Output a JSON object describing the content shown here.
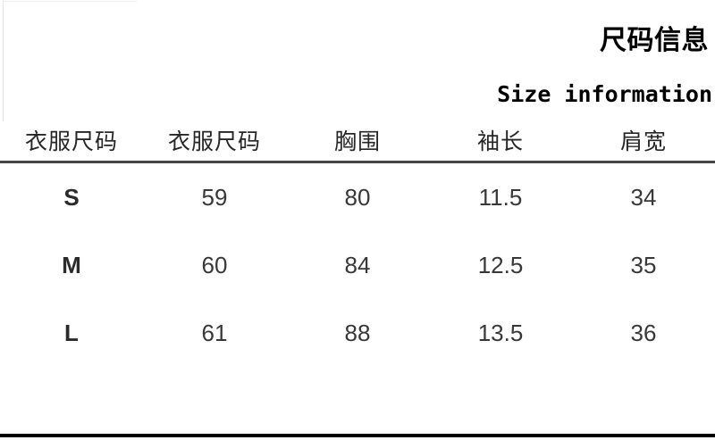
{
  "title": "尺码信息",
  "subtitle": "Size information",
  "table": {
    "headers": [
      "衣服尺码",
      "衣服尺码",
      "胸围",
      "袖长",
      "肩宽"
    ],
    "rows": [
      [
        "S",
        "59",
        "80",
        "11.5",
        "34"
      ],
      [
        "M",
        "60",
        "84",
        "12.5",
        "35"
      ],
      [
        "L",
        "61",
        "88",
        "13.5",
        "36"
      ]
    ]
  },
  "colors": {
    "header_rule": "#454545",
    "bottom_rule": "#000000",
    "left_rule": "#e7e7e7",
    "header_text": "#262626",
    "cell_text": "#383838",
    "title_text": "#000000"
  }
}
